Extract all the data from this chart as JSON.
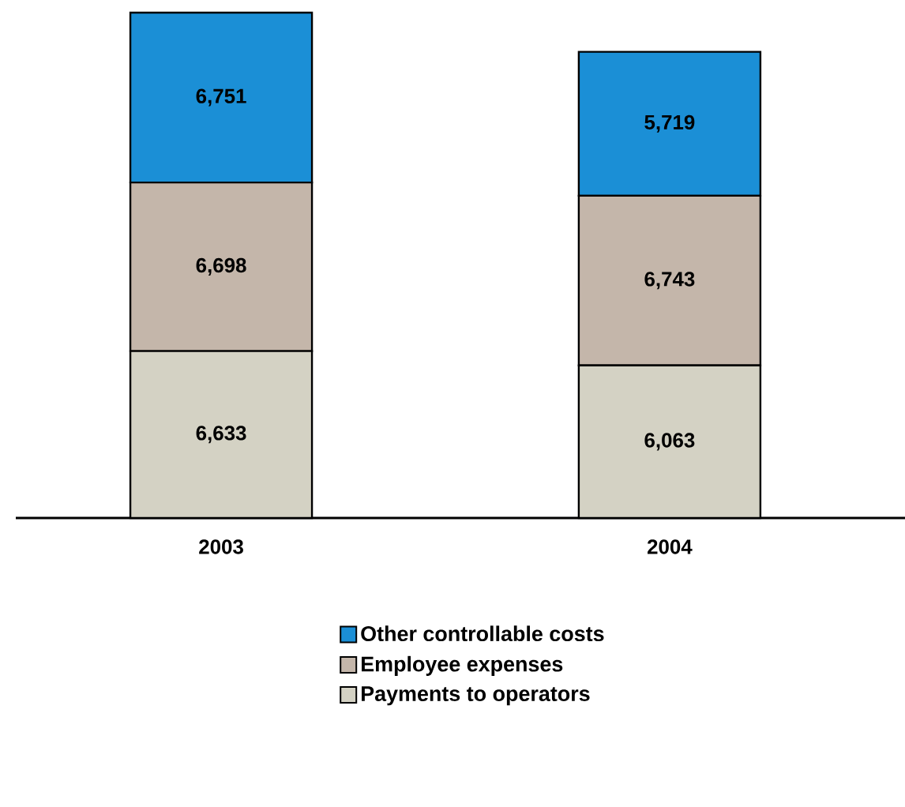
{
  "chart_data": {
    "type": "bar",
    "stacked": true,
    "legend": "bottom",
    "categories": [
      "2003",
      "2004"
    ],
    "series": [
      {
        "name": "Payments to operators",
        "color": "#d4d2c4",
        "values": [
          6633,
          6063
        ],
        "value_labels": [
          "6,633",
          "6,063"
        ]
      },
      {
        "name": "Employee expenses",
        "color": "#c4b6aa",
        "values": [
          6698,
          6743
        ],
        "value_labels": [
          "6,698",
          "6,743"
        ]
      },
      {
        "name": "Other controllable costs",
        "color": "#1b8fd6",
        "values": [
          6751,
          5719
        ],
        "value_labels": [
          "6,751",
          "5,719"
        ]
      }
    ]
  }
}
